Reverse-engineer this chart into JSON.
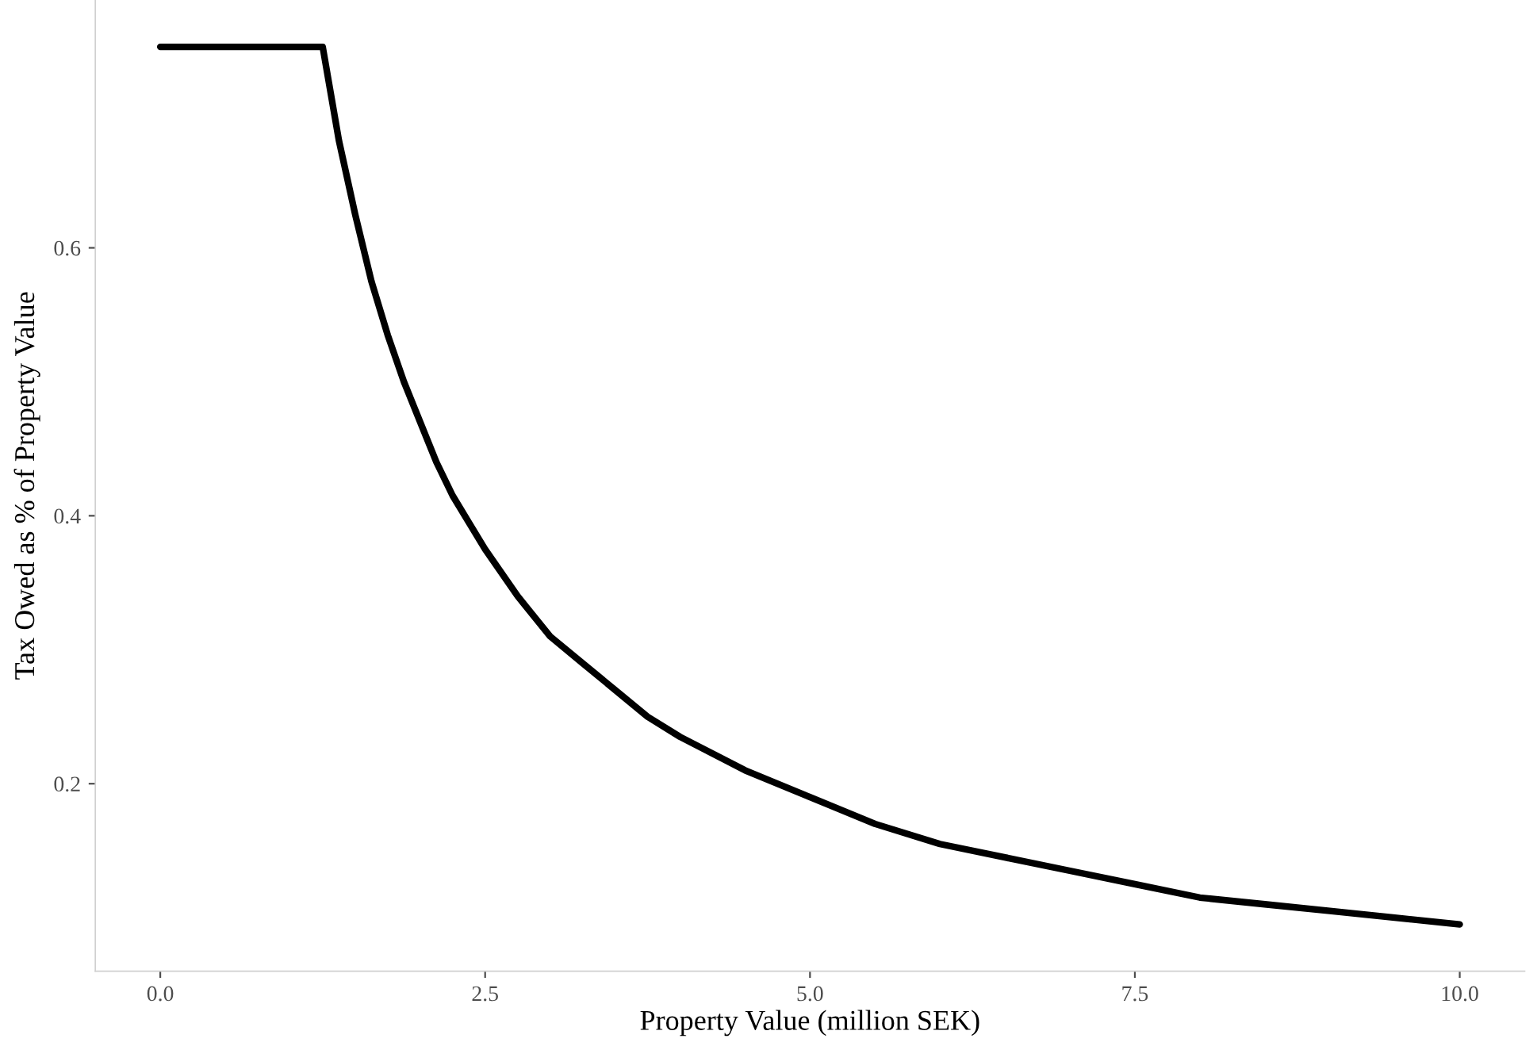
{
  "chart_data": {
    "type": "line",
    "xlabel": "Property Value (million SEK)",
    "ylabel": "Tax Owed as % of Property Value",
    "x": [
      0,
      1.25,
      1.375,
      1.5,
      1.625,
      1.75,
      1.875,
      2,
      2.125,
      2.25,
      2.375,
      2.5,
      2.75,
      3,
      3.25,
      3.5,
      3.75,
      4,
      4.5,
      5,
      5.5,
      6,
      6.5,
      7,
      7.5,
      8,
      8.5,
      9,
      9.5,
      10
    ],
    "series": [
      {
        "color": "#000000",
        "values": [
          0.75,
          0.75,
          0.68,
          0.625,
          0.575,
          0.535,
          0.5,
          0.47,
          0.44,
          0.415,
          0.395,
          0.375,
          0.34,
          0.31,
          0.29,
          0.27,
          0.25,
          0.235,
          0.21,
          0.19,
          0.17,
          0.155,
          0.145,
          0.135,
          0.125,
          0.115,
          0.11,
          0.105,
          0.1,
          0.095
        ]
      }
    ],
    "xticks": [
      {
        "value": 0,
        "label": "0.0"
      },
      2.5,
      {
        "value": 5,
        "label": "5.0"
      },
      {
        "value": 7.5,
        "label": "7.5"
      },
      {
        "value": 10,
        "label": "10.0"
      }
    ],
    "xlim": [
      -0.5,
      10.5
    ],
    "ylim": [
      0.06,
      0.785
    ],
    "yticks": [
      0.2,
      0.4,
      0.6
    ],
    "grid": false,
    "legend": false
  }
}
